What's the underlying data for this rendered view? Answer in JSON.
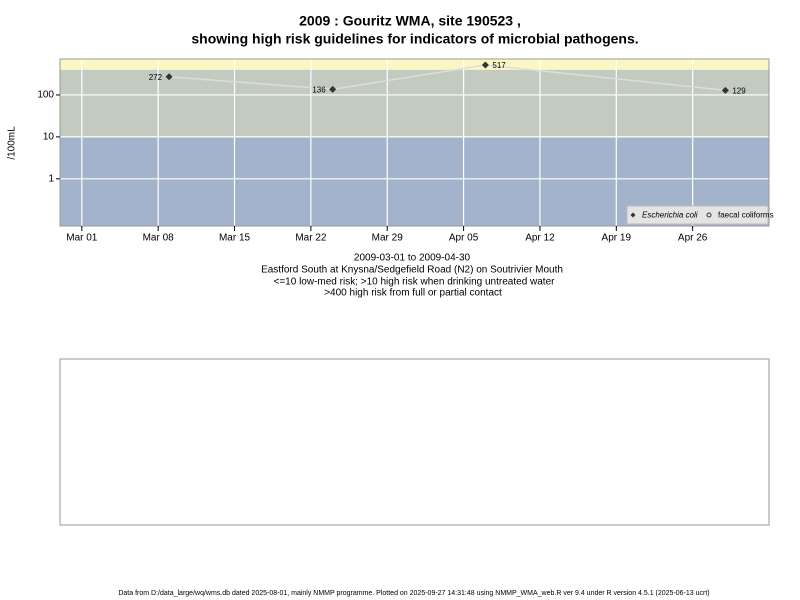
{
  "chart_data": {
    "type": "line",
    "title": [
      "2009 : Gouritz WMA, site 190523 ,",
      "showing high risk guidelines for indicators of microbial pathogens."
    ],
    "y_label": "/100mL",
    "subtitle": [
      "2009-03-01 to 2009-04-30",
      "Eastford South at Knysna/Sedgefield Road (N2) on Soutrivier Mouth",
      "<=10 low-med risk; >10 high risk when drinking untreated water",
      ">400 high risk from full or partial contact"
    ],
    "footer": "Data from D:/data_large/wq/wms.db dated 2025-08-01, mainly NMMP programme. Plotted on 2025-09-27 14:31:48 using NMMP_WMA_web.R ver 9.4 under R version 4.5.1 (2025-06-13 ucrt)",
    "x": [
      "2009-03-09",
      "2009-03-24",
      "2009-04-07",
      "2009-04-29"
    ],
    "series": [
      {
        "name": "Escherichia coli",
        "color": "#333333",
        "line_color": "#dddddd",
        "marker": "diamond",
        "values": [
          272,
          136,
          517,
          129
        ]
      },
      {
        "name": "faecal coliforms",
        "color": "#333333",
        "marker": "circle",
        "values": [
          null,
          null,
          null,
          null
        ]
      }
    ],
    "xlim": [
      "2009-02-27",
      "2009-05-03"
    ],
    "xticks": [
      {
        "value": "2009-03-01",
        "label": "Mar 01"
      },
      {
        "value": "2009-03-08",
        "label": "Mar 08"
      },
      {
        "value": "2009-03-15",
        "label": "Mar 15"
      },
      {
        "value": "2009-03-22",
        "label": "Mar 22"
      },
      {
        "value": "2009-03-29",
        "label": "Mar 29"
      },
      {
        "value": "2009-04-05",
        "label": "Apr 05"
      },
      {
        "value": "2009-04-12",
        "label": "Apr 12"
      },
      {
        "value": "2009-04-19",
        "label": "Apr 19"
      },
      {
        "value": "2009-04-26",
        "label": "Apr 26"
      }
    ],
    "ylim": [
      0.075,
      720
    ],
    "yticks": [
      1,
      10,
      100
    ],
    "log_y": true,
    "grid": true,
    "bands": [
      {
        "from": 0.075,
        "to": 10,
        "color": "#a3b3cc"
      },
      {
        "from": 10,
        "to": 400,
        "color": "#c3cbc0"
      },
      {
        "from": 400,
        "to": 720,
        "color": "#fbf7c2"
      }
    ],
    "legend": "bottom-right"
  }
}
